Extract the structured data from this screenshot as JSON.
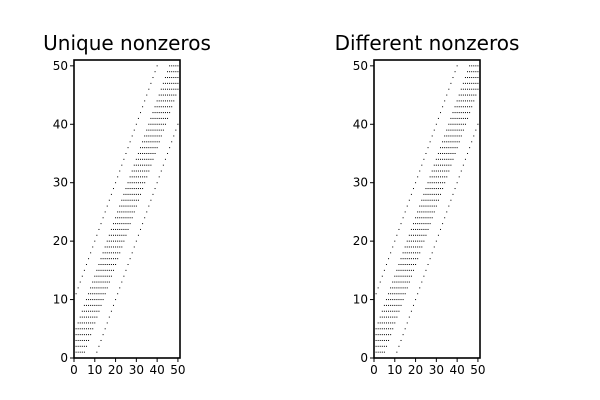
{
  "chart_data": [
    {
      "type": "scatter",
      "title": "Unique nonzeros",
      "xlabel": "",
      "ylabel": "",
      "xlim": [
        0,
        51
      ],
      "ylim": [
        0,
        51
      ],
      "xticks": [
        0,
        10,
        20,
        30,
        40,
        50
      ],
      "yticks": [
        0,
        10,
        20,
        30,
        40,
        50
      ],
      "xtick_labels": [
        "0",
        "10",
        "20",
        "30",
        "40",
        "50"
      ],
      "ytick_labels": [
        "0",
        "10",
        "20",
        "30",
        "40",
        "50"
      ],
      "grid": false,
      "marker_color": "#000000",
      "pattern": "sparsity pattern: 51x51 matrix, nonzeros on diagonals i-j in {-10,-4,-3,-2,-1,0,1,2,3,4,10}",
      "diagonal_offsets": [
        -10,
        -4,
        -3,
        -2,
        -1,
        0,
        1,
        2,
        3,
        4,
        10
      ],
      "matrix_size": 51
    },
    {
      "type": "scatter",
      "title": "Different nonzeros",
      "xlabel": "",
      "ylabel": "",
      "xlim": [
        0,
        51
      ],
      "ylim": [
        0,
        51
      ],
      "xticks": [
        0,
        10,
        20,
        30,
        40,
        50
      ],
      "yticks": [
        0,
        10,
        20,
        30,
        40,
        50
      ],
      "xtick_labels": [
        "0",
        "10",
        "20",
        "30",
        "40",
        "50"
      ],
      "ytick_labels": [
        "0",
        "10",
        "20",
        "30",
        "40",
        "50"
      ],
      "grid": false,
      "marker_color": "#000000",
      "pattern": "sparsity pattern: 51x51 matrix, nonzeros on diagonals i-j in {-10,-4,-3,-2,-1,0,1,2,3,4,10}",
      "diagonal_offsets": [
        -10,
        -4,
        -3,
        -2,
        -1,
        0,
        1,
        2,
        3,
        4,
        10
      ],
      "matrix_size": 51
    }
  ]
}
